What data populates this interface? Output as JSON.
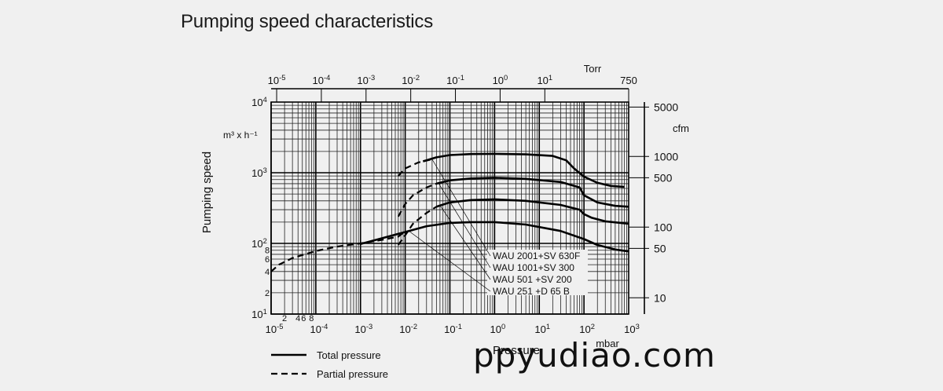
{
  "chart_data": {
    "type": "line",
    "title": "Pumping speed characteristics",
    "ylabel": "Pumping speed",
    "yunit": "m³ x h⁻¹",
    "xlabel": "Pressure",
    "xunit_bottom": "mbar",
    "xunit_top": "Torr",
    "yunit_right": "cfm",
    "x_scale": "log",
    "y_scale": "log",
    "xlim": [
      1e-05,
      1000
    ],
    "ylim": [
      10,
      10000
    ],
    "bottom_ticks": [
      {
        "value": 1e-05,
        "base": "10",
        "exp": "-5"
      },
      {
        "value": 0.0001,
        "base": "10",
        "exp": "-4"
      },
      {
        "value": 0.001,
        "base": "10",
        "exp": "-3"
      },
      {
        "value": 0.01,
        "base": "10",
        "exp": "-2"
      },
      {
        "value": 0.1,
        "base": "10",
        "exp": "-1"
      },
      {
        "value": 1,
        "base": "10",
        "exp": "0"
      },
      {
        "value": 10,
        "base": "10",
        "exp": "1"
      },
      {
        "value": 100,
        "base": "10",
        "exp": "2"
      },
      {
        "value": 1000,
        "base": "10",
        "exp": "3"
      }
    ],
    "bottom_minor_labels": [
      {
        "value": 2e-05,
        "label": "2"
      },
      {
        "value": 4e-05,
        "label": "4"
      },
      {
        "value": 6e-05,
        "label": "6"
      },
      {
        "value": 8e-05,
        "label": "8"
      }
    ],
    "top_ticks": [
      {
        "value": 1.33e-05,
        "base": "10",
        "exp": "-5"
      },
      {
        "value": 0.000133,
        "base": "10",
        "exp": "-4"
      },
      {
        "value": 0.00133,
        "base": "10",
        "exp": "-3"
      },
      {
        "value": 0.0133,
        "base": "10",
        "exp": "-2"
      },
      {
        "value": 0.133,
        "base": "10",
        "exp": "-1"
      },
      {
        "value": 1.33,
        "base": "10",
        "exp": "0"
      },
      {
        "value": 13.3,
        "base": "10",
        "exp": "1"
      },
      {
        "value": 1000,
        "base": "750",
        "exp": ""
      }
    ],
    "left_ticks": [
      {
        "value": 10,
        "base": "10",
        "exp": "1"
      },
      {
        "value": 100,
        "base": "10",
        "exp": "2"
      },
      {
        "value": 1000,
        "base": "10",
        "exp": "3"
      },
      {
        "value": 10000,
        "base": "10",
        "exp": "4"
      }
    ],
    "left_minor_labels": [
      {
        "value": 20,
        "label": "2"
      },
      {
        "value": 40,
        "label": "4"
      },
      {
        "value": 60,
        "label": "6"
      },
      {
        "value": 80,
        "label": "8"
      }
    ],
    "right_ticks": [
      {
        "value": 17,
        "label": "10"
      },
      {
        "value": 85,
        "label": "50"
      },
      {
        "value": 170,
        "label": "100"
      },
      {
        "value": 850,
        "label": "500"
      },
      {
        "value": 1700,
        "label": "1000"
      },
      {
        "value": 8500,
        "label": "5000"
      }
    ],
    "legend": [
      {
        "style": "solid",
        "label": "Total pressure"
      },
      {
        "style": "dashed",
        "label": "Partial pressure"
      }
    ],
    "series": [
      {
        "name": "WAU 2001+SV 630F",
        "solid": [
          [
            0.025,
            1450
          ],
          [
            0.05,
            1650
          ],
          [
            0.1,
            1780
          ],
          [
            0.3,
            1840
          ],
          [
            1,
            1850
          ],
          [
            5,
            1820
          ],
          [
            20,
            1730
          ],
          [
            40,
            1500
          ],
          [
            60,
            1150
          ],
          [
            100,
            880
          ],
          [
            200,
            720
          ],
          [
            400,
            650
          ],
          [
            800,
            630
          ]
        ],
        "dashed": [
          [
            0.007,
            900
          ],
          [
            0.01,
            1150
          ],
          [
            0.02,
            1400
          ],
          [
            0.04,
            1550
          ]
        ]
      },
      {
        "name": "WAU 1001+SV 300",
        "solid": [
          [
            0.05,
            700
          ],
          [
            0.1,
            780
          ],
          [
            0.3,
            830
          ],
          [
            1,
            850
          ],
          [
            5,
            820
          ],
          [
            30,
            740
          ],
          [
            80,
            620
          ],
          [
            100,
            480
          ],
          [
            200,
            380
          ],
          [
            500,
            340
          ],
          [
            1000,
            330
          ]
        ],
        "dashed": [
          [
            0.007,
            240
          ],
          [
            0.01,
            360
          ],
          [
            0.015,
            480
          ],
          [
            0.03,
            620
          ],
          [
            0.05,
            700
          ]
        ]
      },
      {
        "name": "WAU 501 +SV 200",
        "solid": [
          [
            0.05,
            330
          ],
          [
            0.1,
            380
          ],
          [
            0.3,
            410
          ],
          [
            1,
            420
          ],
          [
            5,
            400
          ],
          [
            30,
            350
          ],
          [
            80,
            300
          ],
          [
            100,
            260
          ],
          [
            150,
            230
          ],
          [
            300,
            205
          ],
          [
            1000,
            190
          ]
        ],
        "dashed": [
          [
            0.007,
            95
          ],
          [
            0.01,
            130
          ],
          [
            0.015,
            190
          ],
          [
            0.03,
            270
          ],
          [
            0.05,
            330
          ]
        ]
      },
      {
        "name": "WAU 251 +D 65 B",
        "solid": [
          [
            0.001,
            98
          ],
          [
            0.003,
            118
          ],
          [
            0.01,
            145
          ],
          [
            0.03,
            175
          ],
          [
            0.1,
            195
          ],
          [
            0.3,
            200
          ],
          [
            1,
            200
          ],
          [
            5,
            185
          ],
          [
            30,
            150
          ],
          [
            100,
            115
          ],
          [
            200,
            95
          ],
          [
            500,
            82
          ],
          [
            1000,
            77
          ]
        ],
        "dashed": [
          [
            1e-05,
            40
          ],
          [
            1.5e-05,
            50
          ],
          [
            3e-05,
            62
          ],
          [
            0.0001,
            78
          ],
          [
            0.0003,
            90
          ],
          [
            0.001,
            100
          ],
          [
            0.003,
            112
          ],
          [
            0.007,
            125
          ],
          [
            0.01,
            148
          ]
        ]
      }
    ]
  },
  "watermark": "ppyudiao.com"
}
